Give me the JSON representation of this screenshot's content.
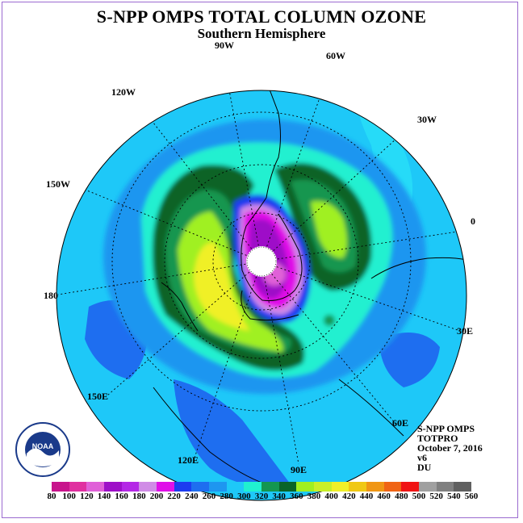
{
  "header": {
    "title": "S-NPP OMPS TOTAL COLUMN OZONE",
    "subtitle": "Southern Hemisphere"
  },
  "info": {
    "lines": [
      "S-NPP OMPS",
      "TOTPRO",
      "October 7, 2016",
      "v6",
      "DU"
    ]
  },
  "longitude_labels": [
    "90W",
    "60W",
    "30W",
    "0",
    "30E",
    "60E",
    "90E",
    "120E",
    "150E",
    "180",
    "150W",
    "120W"
  ],
  "colorbar": {
    "ticks": [
      "80",
      "100",
      "120",
      "140",
      "160",
      "180",
      "200",
      "220",
      "240",
      "260",
      "280",
      "300",
      "320",
      "340",
      "360",
      "380",
      "400",
      "420",
      "440",
      "460",
      "480",
      "500",
      "520",
      "540",
      "560"
    ],
    "colors": [
      "#c8148c",
      "#e030a0",
      "#e060d8",
      "#9e10c8",
      "#b428e6",
      "#d08ce6",
      "#e010e8",
      "#1c3cf0",
      "#1e6ef0",
      "#1e96f0",
      "#1ec8f8",
      "#20f0d0",
      "#149650",
      "#0a6428",
      "#a0f020",
      "#c8f028",
      "#f0f028",
      "#f0c814",
      "#f09614",
      "#f06414",
      "#f01414",
      "#a0a0a0",
      "#808080",
      "#606060"
    ]
  },
  "logo": {
    "text": "NOAA"
  },
  "colors": {
    "background_ocean": "#1e8cf0",
    "outer_band": "#28c8f8",
    "cyan_band": "#20f0d0",
    "dark_green": "#0a6428",
    "mid_green": "#149650",
    "yellow_green": "#a0f020",
    "yellow": "#f0f028",
    "hole_blue": "#1c3cf0",
    "hole_purple": "#9e10c8",
    "hole_magenta": "#e010e8",
    "hole_pink": "#e060d8",
    "hole_lilac": "#d08ce6"
  }
}
